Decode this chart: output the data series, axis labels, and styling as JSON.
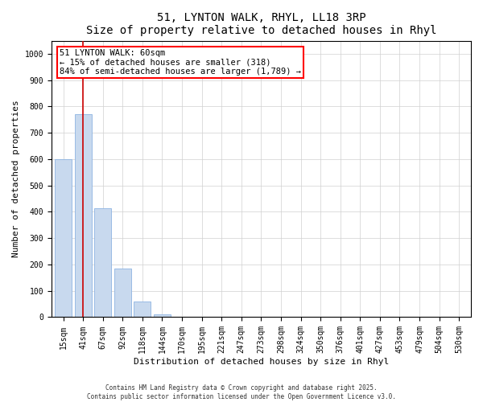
{
  "title": "51, LYNTON WALK, RHYL, LL18 3RP",
  "subtitle": "Size of property relative to detached houses in Rhyl",
  "xlabel": "Distribution of detached houses by size in Rhyl",
  "ylabel": "Number of detached properties",
  "categories": [
    "15sqm",
    "41sqm",
    "67sqm",
    "92sqm",
    "118sqm",
    "144sqm",
    "170sqm",
    "195sqm",
    "221sqm",
    "247sqm",
    "273sqm",
    "298sqm",
    "324sqm",
    "350sqm",
    "376sqm",
    "401sqm",
    "427sqm",
    "453sqm",
    "479sqm",
    "504sqm",
    "530sqm"
  ],
  "values": [
    600,
    770,
    415,
    185,
    60,
    10,
    0,
    0,
    0,
    0,
    0,
    0,
    0,
    0,
    0,
    0,
    0,
    0,
    0,
    0,
    0
  ],
  "bar_color": "#c8d9ee",
  "bar_edge_color": "#8db4e2",
  "grid_color": "#d0d0d0",
  "vertical_line_color": "#cc0000",
  "vertical_line_x": 1,
  "annotation_box_text": "51 LYNTON WALK: 60sqm\n← 15% of detached houses are smaller (318)\n84% of semi-detached houses are larger (1,789) →",
  "ylim": [
    0,
    1050
  ],
  "yticks": [
    0,
    100,
    200,
    300,
    400,
    500,
    600,
    700,
    800,
    900,
    1000
  ],
  "footnote1": "Contains HM Land Registry data © Crown copyright and database right 2025.",
  "footnote2": "Contains public sector information licensed under the Open Government Licence v3.0.",
  "title_fontsize": 10,
  "subtitle_fontsize": 9,
  "axis_fontsize": 7,
  "ylabel_fontsize": 8,
  "xlabel_fontsize": 8,
  "tick_fontsize": 7,
  "annotation_fontsize": 7.5,
  "footnote_fontsize": 5.5
}
